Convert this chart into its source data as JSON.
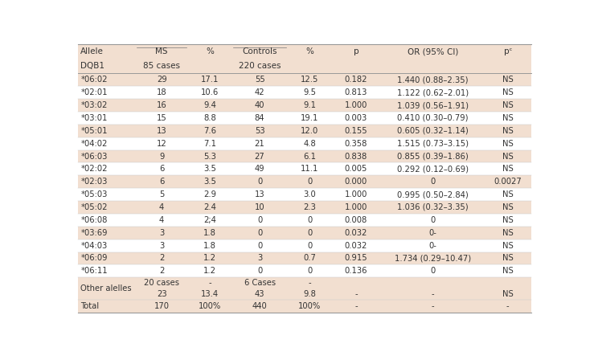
{
  "rows": [
    [
      "*06:02",
      "29",
      "17.1",
      "55",
      "12.5",
      "0.182",
      "1.440 (0.88–2.35)",
      "NS"
    ],
    [
      "*02:01",
      "18",
      "10.6",
      "42",
      "9.5",
      "0.813",
      "1.122 (0.62–2.01)",
      "NS"
    ],
    [
      "*03:02",
      "16",
      "9.4",
      "40",
      "9.1",
      "1.000",
      "1.039 (0.56–1.91)",
      "NS"
    ],
    [
      "*03:01",
      "15",
      "8.8",
      "84",
      "19.1",
      "0.003",
      "0.410 (0.30–0.79)",
      "NS"
    ],
    [
      "*05:01",
      "13",
      "7.6",
      "53",
      "12.0",
      "0.155",
      "0.605 (0.32–1.14)",
      "NS"
    ],
    [
      "*04:02",
      "12",
      "7.1",
      "21",
      "4.8",
      "0.358",
      "1.515 (0.73–3.15)",
      "NS"
    ],
    [
      "*06:03",
      "9",
      "5.3",
      "27",
      "6.1",
      "0.838",
      "0.855 (0.39–1.86)",
      "NS"
    ],
    [
      "*02:02",
      "6",
      "3.5",
      "49",
      "11.1",
      "0.005",
      "0.292 (0.12–0.69)",
      "NS"
    ],
    [
      "*02:03",
      "6",
      "3.5",
      "0",
      "0",
      "0.000",
      "0",
      "0.0027"
    ],
    [
      "*05:03",
      "5",
      "2.9",
      "13",
      "3.0",
      "1.000",
      "0.995 (0.50–2.84)",
      "NS"
    ],
    [
      "*05:02",
      "4",
      "2.4",
      "10",
      "2.3",
      "1.000",
      "1.036 (0.32–3.35)",
      "NS"
    ],
    [
      "*06:08",
      "4",
      "2;4",
      "0",
      "0",
      "0.008",
      "0",
      "NS"
    ],
    [
      "*03:69",
      "3",
      "1.8",
      "0",
      "0",
      "0.032",
      "0-",
      "NS"
    ],
    [
      "*04:03",
      "3",
      "1.8",
      "0",
      "0",
      "0.032",
      "0-",
      "NS"
    ],
    [
      "*06:09",
      "2",
      "1.2",
      "3",
      "0.7",
      "0.915",
      "1.734 (0.29–10.47)",
      "NS"
    ],
    [
      "*06:11",
      "2",
      "1.2",
      "0",
      "0",
      "0.136",
      "0",
      "NS"
    ]
  ],
  "bg_color_odd": "#f2dfd0",
  "bg_color_even": "#ffffff",
  "font_size": 7.2,
  "header_font_size": 7.5,
  "text_color": "#333333",
  "line_color_heavy": "#999999",
  "line_color_light": "#cccccc",
  "underline_color": "#777777"
}
